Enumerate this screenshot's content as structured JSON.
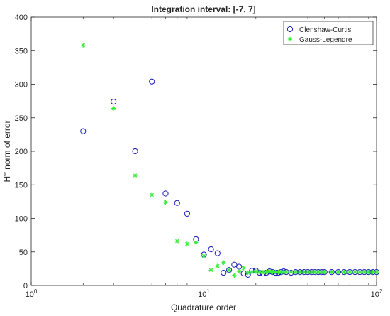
{
  "chart_data": {
    "type": "scatter",
    "title": "Integration interval: [-7, 7]",
    "xlabel": "Quadrature order",
    "ylabel": {
      "main": "H",
      "sup": "∞",
      "rest": " norm of error"
    },
    "xscale": "log",
    "xlim": [
      1,
      100
    ],
    "ylim": [
      0,
      400
    ],
    "xticks": [
      {
        "value": 1,
        "base": "10",
        "exp": "0"
      },
      {
        "value": 10,
        "base": "10",
        "exp": "1"
      },
      {
        "value": 100,
        "base": "10",
        "exp": "2"
      }
    ],
    "yticks": [
      0,
      50,
      100,
      150,
      200,
      250,
      300,
      350,
      400
    ],
    "grid": false,
    "legend_position": "top-right",
    "colors": {
      "clenshaw": "#1a1ab8",
      "gauss": "#33ee33",
      "axes": "#262626"
    },
    "series": [
      {
        "name": "Clenshaw-Curtis",
        "marker": "circle",
        "x": [
          2,
          3,
          4,
          5,
          6,
          7,
          8,
          9,
          10,
          11,
          12,
          13,
          14,
          15,
          16,
          17,
          18,
          19,
          20,
          21,
          22,
          23,
          24,
          25,
          26,
          27,
          28,
          29,
          30,
          32,
          34,
          36,
          38,
          40,
          42,
          44,
          46,
          48,
          50,
          55,
          60,
          65,
          70,
          75,
          80,
          85,
          90,
          95,
          100
        ],
        "y": [
          230,
          274,
          200,
          304,
          137,
          123,
          107,
          69,
          46,
          54,
          48,
          19,
          23,
          31,
          28,
          18,
          16,
          22,
          22,
          19,
          18,
          19,
          21,
          20,
          19,
          19,
          20,
          21,
          20,
          19,
          20,
          20,
          20,
          20,
          20,
          20,
          20,
          20,
          20,
          20,
          20,
          20,
          20,
          20,
          20,
          20,
          20,
          20,
          20
        ]
      },
      {
        "name": "Gauss-Legendre",
        "marker": "asterisk",
        "x": [
          2,
          3,
          4,
          5,
          6,
          7,
          8,
          9,
          10,
          11,
          12,
          13,
          14,
          15,
          16,
          17,
          18,
          19,
          20,
          21,
          22,
          23,
          24,
          25,
          26,
          27,
          28,
          29,
          30,
          32,
          34,
          36,
          38,
          40,
          42,
          44,
          46,
          48,
          50,
          55,
          60,
          65,
          70,
          75,
          80,
          85,
          90,
          95,
          100
        ],
        "y": [
          358,
          264,
          164,
          135,
          124,
          66,
          62,
          64,
          44,
          23,
          29,
          34,
          23,
          15,
          21,
          26,
          19,
          20,
          21,
          20,
          20,
          20,
          21,
          20,
          20,
          20,
          20,
          20,
          20,
          20,
          20,
          20,
          20,
          20,
          20,
          20,
          20,
          20,
          20,
          20,
          20,
          20,
          20,
          20,
          20,
          20,
          20,
          20,
          20
        ]
      }
    ]
  }
}
